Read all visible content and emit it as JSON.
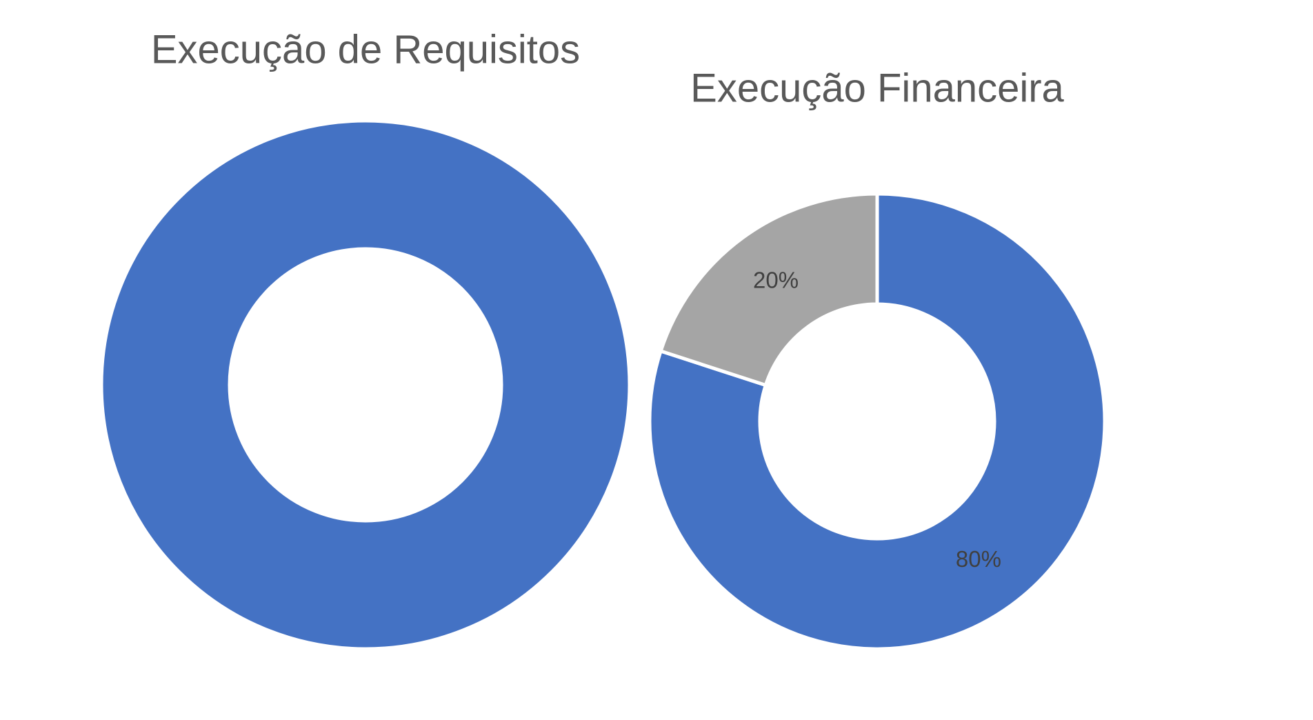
{
  "chart_data": [
    {
      "type": "donut",
      "title": "Execução de Requisitos",
      "values": [
        100
      ],
      "colors": [
        "#4472c4"
      ]
    },
    {
      "type": "donut",
      "title": "Execução Financeira",
      "values": [
        80,
        20
      ],
      "value_labels": [
        "80%",
        "20%"
      ],
      "colors": [
        "#4472c4",
        "#a5a5a5"
      ]
    }
  ]
}
